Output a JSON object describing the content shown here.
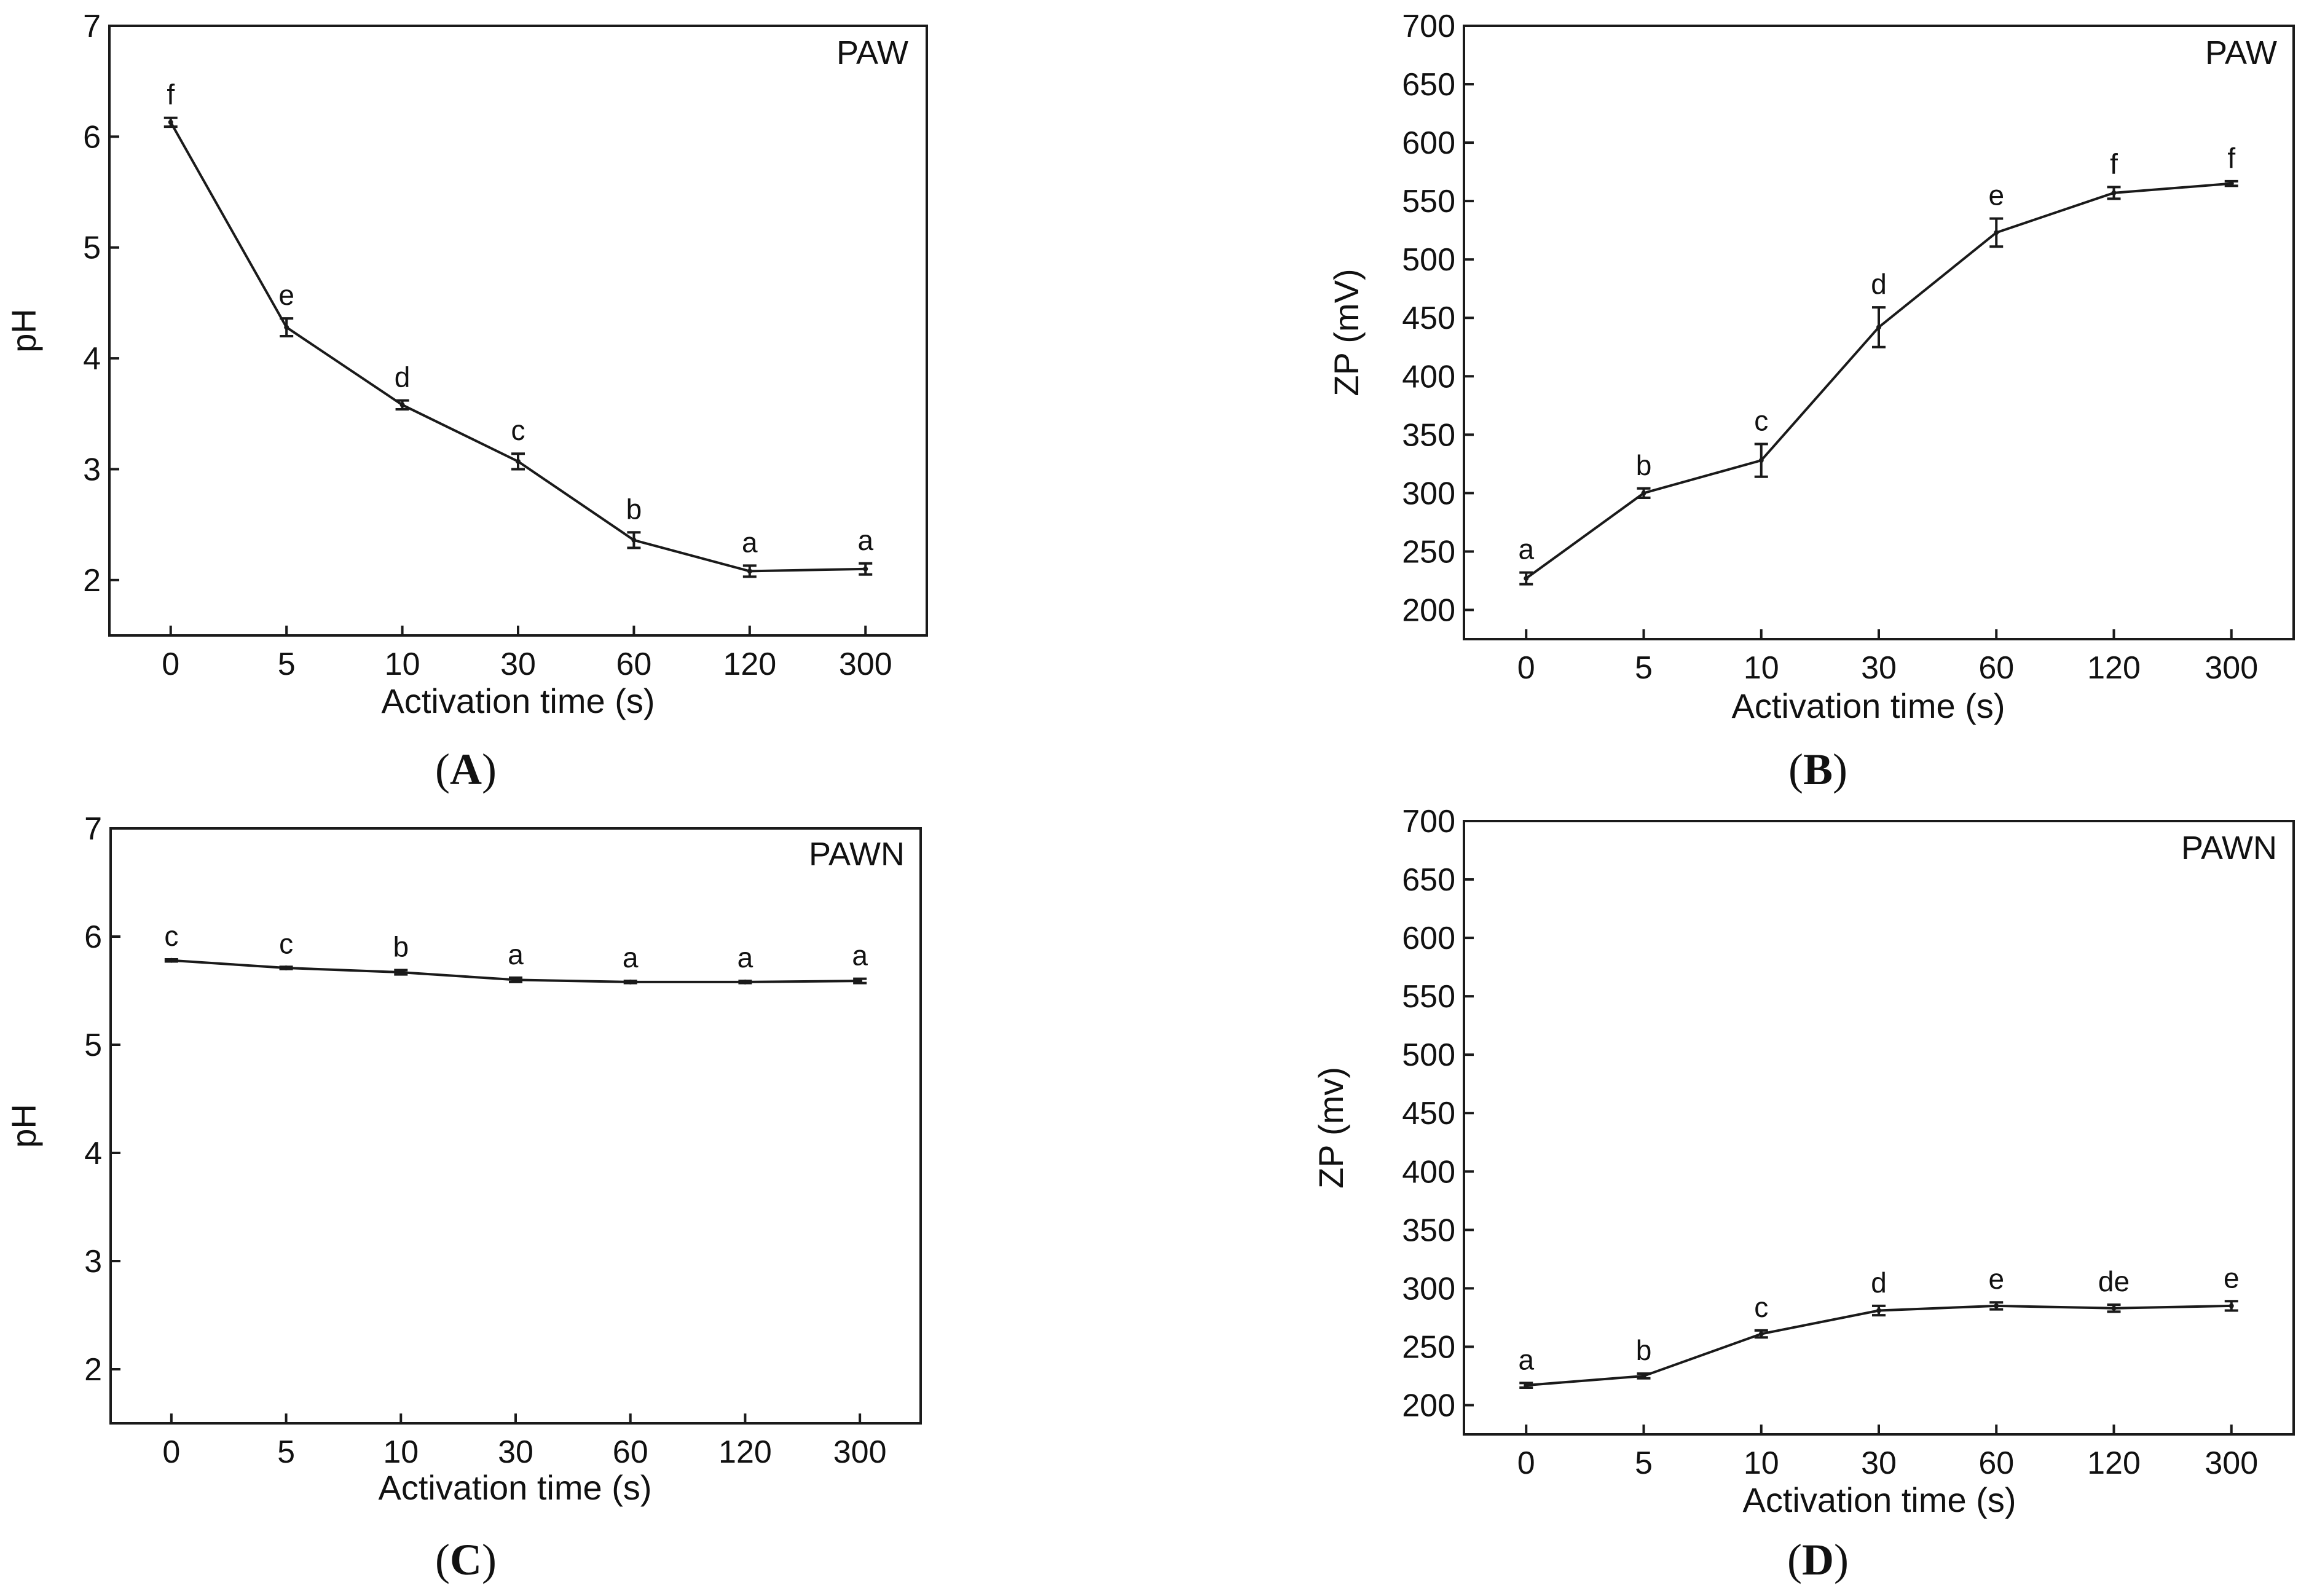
{
  "colors": {
    "axis": "#1a1a1a",
    "line": "#1a1a1a",
    "background": "#ffffff"
  },
  "chart_data": [
    {
      "id": "A",
      "caption_letter": "A",
      "type": "line",
      "tag": "PAW",
      "xlabel": "Activation time (s)",
      "ylabel": "pH",
      "categories": [
        "0",
        "5",
        "10",
        "30",
        "60",
        "120",
        "300"
      ],
      "values": [
        6.13,
        4.28,
        3.58,
        3.07,
        2.36,
        2.08,
        2.1
      ],
      "errors": [
        0.04,
        0.08,
        0.04,
        0.07,
        0.07,
        0.05,
        0.05
      ],
      "significance": [
        "f",
        "e",
        "d",
        "c",
        "b",
        "a",
        "a"
      ],
      "ylim": [
        1.5,
        7
      ],
      "yticks": [
        2,
        3,
        4,
        5,
        6,
        7
      ]
    },
    {
      "id": "B",
      "caption_letter": "B",
      "type": "line",
      "tag": "PAW",
      "xlabel": "Activation time (s)",
      "ylabel": "ZP (mV)",
      "categories": [
        "0",
        "5",
        "10",
        "30",
        "60",
        "120",
        "300"
      ],
      "values": [
        227,
        300,
        328,
        442,
        523,
        557,
        565
      ],
      "errors": [
        5,
        4,
        14,
        17,
        12,
        5,
        2
      ],
      "significance": [
        "a",
        "b",
        "c",
        "d",
        "e",
        "f",
        "f"
      ],
      "ylim": [
        175,
        700
      ],
      "yticks": [
        200,
        250,
        300,
        350,
        400,
        450,
        500,
        550,
        600,
        650,
        700
      ]
    },
    {
      "id": "C",
      "caption_letter": "C",
      "type": "line",
      "tag": "PAWN",
      "xlabel": "Activation time (s)",
      "ylabel": "pH",
      "categories": [
        "0",
        "5",
        "10",
        "30",
        "60",
        "120",
        "300"
      ],
      "values": [
        5.78,
        5.71,
        5.67,
        5.6,
        5.58,
        5.58,
        5.59
      ],
      "errors": [
        0.01,
        0.01,
        0.02,
        0.02,
        0.01,
        0.01,
        0.02
      ],
      "significance": [
        "c",
        "c",
        "b",
        "a",
        "a",
        "a",
        "a"
      ],
      "ylim": [
        1.5,
        7
      ],
      "yticks": [
        2,
        3,
        4,
        5,
        6,
        7
      ]
    },
    {
      "id": "D",
      "caption_letter": "D",
      "type": "line",
      "tag": "PAWN",
      "xlabel": "Activation time (s)",
      "ylabel": "ZP (mv)",
      "categories": [
        "0",
        "5",
        "10",
        "30",
        "60",
        "120",
        "300"
      ],
      "values": [
        217,
        225,
        261,
        281,
        285,
        283,
        285
      ],
      "errors": [
        2,
        2,
        3,
        4,
        3,
        3,
        4
      ],
      "significance": [
        "a",
        "b",
        "c",
        "d",
        "e",
        "de",
        "e"
      ],
      "ylim": [
        175,
        700
      ],
      "yticks": [
        200,
        250,
        300,
        350,
        400,
        450,
        500,
        550,
        600,
        650,
        700
      ]
    }
  ]
}
